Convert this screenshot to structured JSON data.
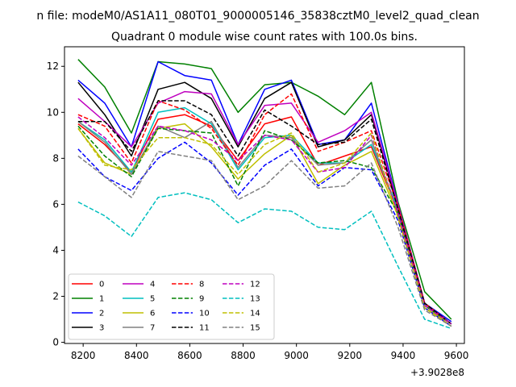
{
  "chart_data": {
    "type": "line",
    "suptitle": "n file: modeM0/AS1A11_080T01_9000005146_35838cztM0_level2_quad_clean",
    "title": "Quadrant 0 module wise count rates with 100.0s bins.",
    "xlabel": "",
    "ylabel": "",
    "x_offset_label": "+3.9028e8",
    "x": [
      8181,
      8281,
      8381,
      8481,
      8581,
      8681,
      8781,
      8881,
      8981,
      9081,
      9181,
      9281,
      9381,
      9481,
      9581
    ],
    "xlim": [
      8130,
      9630
    ],
    "ylim": [
      -0.05,
      12.85
    ],
    "xticks": [
      8200,
      8400,
      8600,
      8800,
      9000,
      9200,
      9400,
      9600
    ],
    "xtick_labels": [
      "8200",
      "8400",
      "8600",
      "8800",
      "9000",
      "9200",
      "9400",
      "9600"
    ],
    "yticks": [
      0,
      2,
      4,
      6,
      8,
      10,
      12
    ],
    "ytick_labels": [
      "0",
      "2",
      "4",
      "6",
      "8",
      "10",
      "12"
    ],
    "grid": false,
    "legend_position": "lower-left",
    "legend_columns": 4,
    "series": [
      {
        "name": "0",
        "color": "#ff0000",
        "dash": "solid",
        "values": [
          9.5,
          8.6,
          7.4,
          9.7,
          9.9,
          9.4,
          7.9,
          9.5,
          9.8,
          7.7,
          8.1,
          8.5,
          5.7,
          1.6,
          0.8
        ]
      },
      {
        "name": "1",
        "color": "#008000",
        "dash": "solid",
        "values": [
          12.3,
          11.1,
          9.1,
          12.2,
          12.1,
          11.9,
          10.0,
          11.2,
          11.3,
          10.7,
          9.9,
          11.3,
          6.1,
          2.2,
          1.0
        ]
      },
      {
        "name": "2",
        "color": "#0000ff",
        "dash": "solid",
        "values": [
          11.4,
          10.4,
          8.5,
          12.2,
          11.6,
          11.4,
          8.6,
          11.0,
          11.4,
          8.6,
          8.8,
          10.4,
          6.0,
          1.7,
          0.9
        ]
      },
      {
        "name": "3",
        "color": "#000000",
        "dash": "solid",
        "values": [
          11.3,
          9.9,
          8.1,
          11.0,
          11.3,
          10.6,
          8.5,
          10.6,
          11.3,
          8.5,
          8.8,
          9.9,
          5.9,
          1.7,
          0.8
        ]
      },
      {
        "name": "4",
        "color": "#bf00bf",
        "dash": "solid",
        "values": [
          10.6,
          9.6,
          8.5,
          10.4,
          10.9,
          10.8,
          8.6,
          10.3,
          10.4,
          8.7,
          9.2,
          10.0,
          6.0,
          1.7,
          0.8
        ]
      },
      {
        "name": "5",
        "color": "#00bfbf",
        "dash": "solid",
        "values": [
          9.6,
          8.8,
          7.4,
          10.0,
          10.2,
          9.5,
          7.5,
          8.9,
          9.0,
          7.8,
          7.8,
          8.6,
          5.8,
          1.6,
          0.8
        ]
      },
      {
        "name": "6",
        "color": "#bfbf00",
        "dash": "solid",
        "values": [
          9.3,
          7.8,
          7.3,
          9.3,
          9.5,
          8.5,
          7.1,
          8.2,
          9.0,
          6.9,
          7.7,
          8.3,
          5.5,
          1.5,
          0.8
        ]
      },
      {
        "name": "7",
        "color": "#808080",
        "dash": "solid",
        "values": [
          9.6,
          8.7,
          7.3,
          9.4,
          8.9,
          9.6,
          7.6,
          9.0,
          8.9,
          7.7,
          7.8,
          8.8,
          5.6,
          1.5,
          0.7
        ]
      },
      {
        "name": "8",
        "color": "#ff0000",
        "dash": "dashed",
        "values": [
          9.9,
          9.4,
          7.8,
          10.5,
          10.1,
          9.3,
          7.7,
          9.9,
          10.8,
          8.3,
          8.7,
          9.2,
          5.9,
          1.7,
          0.8
        ]
      },
      {
        "name": "9",
        "color": "#008000",
        "dash": "dashed",
        "values": [
          9.4,
          8.1,
          7.2,
          9.3,
          9.2,
          9.1,
          6.8,
          9.2,
          8.8,
          7.8,
          7.9,
          7.6,
          5.6,
          1.6,
          0.8
        ]
      },
      {
        "name": "10",
        "color": "#0000ff",
        "dash": "dashed",
        "values": [
          8.4,
          7.2,
          6.6,
          8.0,
          8.7,
          7.8,
          6.4,
          7.7,
          8.4,
          6.8,
          7.6,
          7.5,
          5.3,
          1.5,
          0.7
        ]
      },
      {
        "name": "11",
        "color": "#000000",
        "dash": "dashed",
        "values": [
          9.6,
          9.6,
          8.3,
          10.5,
          10.5,
          9.9,
          8.1,
          10.1,
          9.4,
          8.6,
          8.7,
          9.7,
          5.8,
          1.7,
          0.8
        ]
      },
      {
        "name": "12",
        "color": "#bf00bf",
        "dash": "dashed",
        "values": [
          9.8,
          8.9,
          7.7,
          9.4,
          9.2,
          8.8,
          7.9,
          9.0,
          8.8,
          7.4,
          7.6,
          9.0,
          5.6,
          1.6,
          0.8
        ]
      },
      {
        "name": "13",
        "color": "#00bfbf",
        "dash": "dashed",
        "values": [
          6.1,
          5.5,
          4.6,
          6.3,
          6.5,
          6.2,
          5.2,
          5.8,
          5.7,
          5.0,
          4.9,
          5.7,
          3.3,
          1.0,
          0.6
        ]
      },
      {
        "name": "14",
        "color": "#bfbf00",
        "dash": "dashed",
        "values": [
          9.3,
          7.7,
          7.5,
          8.9,
          8.9,
          8.6,
          7.3,
          8.6,
          9.1,
          7.4,
          7.8,
          9.1,
          5.4,
          1.5,
          0.7
        ]
      },
      {
        "name": "15",
        "color": "#808080",
        "dash": "dashed",
        "values": [
          8.1,
          7.2,
          6.3,
          8.3,
          8.1,
          7.9,
          6.2,
          6.8,
          7.9,
          6.7,
          6.8,
          7.8,
          5.0,
          1.4,
          0.7
        ]
      }
    ]
  }
}
